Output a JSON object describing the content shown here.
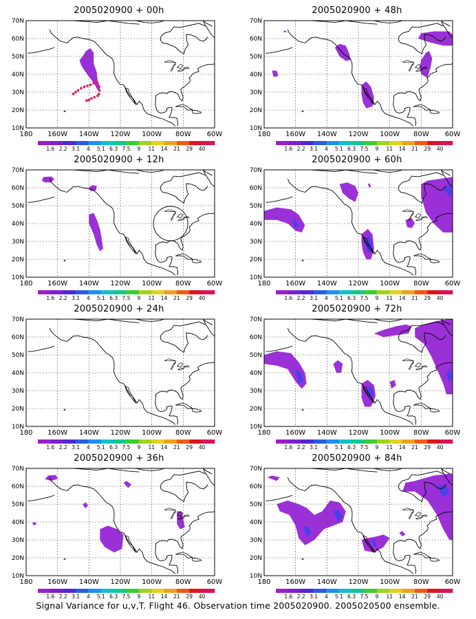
{
  "caption": "Signal Variance for u,v,T. Flight 46. Observation time 2005020900. 2005020500 ensemble.",
  "lat_labels": [
    "10N",
    "20N",
    "30N",
    "40N",
    "50N",
    "60N",
    "70N"
  ],
  "lon_labels": [
    "180",
    "160W",
    "140W",
    "120W",
    "100W",
    "80W",
    "60W"
  ],
  "colorbar": {
    "labels": [
      "1.6",
      "2.2",
      "3.1",
      "4",
      "5.1",
      "6.3",
      "7.5",
      "9",
      "11",
      "14",
      "21",
      "29",
      "40"
    ],
    "colors": [
      "#9b1fc8",
      "#7a1fd2",
      "#4b2ad8",
      "#2a5ce0",
      "#1e90f0",
      "#12c2c8",
      "#10c890",
      "#3ccc30",
      "#a0d21e",
      "#e0d21e",
      "#f0a01e",
      "#f05a14",
      "#e0141e",
      "#d8145a"
    ]
  },
  "panels": [
    {
      "id": "p00",
      "title": "2005020900 + 00h"
    },
    {
      "id": "p48",
      "title": "2005020900 + 48h"
    },
    {
      "id": "p12",
      "title": "2005020900 + 12h"
    },
    {
      "id": "p60",
      "title": "2005020900 + 60h"
    },
    {
      "id": "p24",
      "title": "2005020900 + 24h"
    },
    {
      "id": "p72",
      "title": "2005020900 + 72h"
    },
    {
      "id": "p36",
      "title": "2005020900 + 36h"
    },
    {
      "id": "p84",
      "title": "2005020900 + 84h"
    }
  ],
  "flight_track_color": "#e0206a",
  "variance_color": "#9b30d8",
  "high_variance_color": "#4a40e8"
}
